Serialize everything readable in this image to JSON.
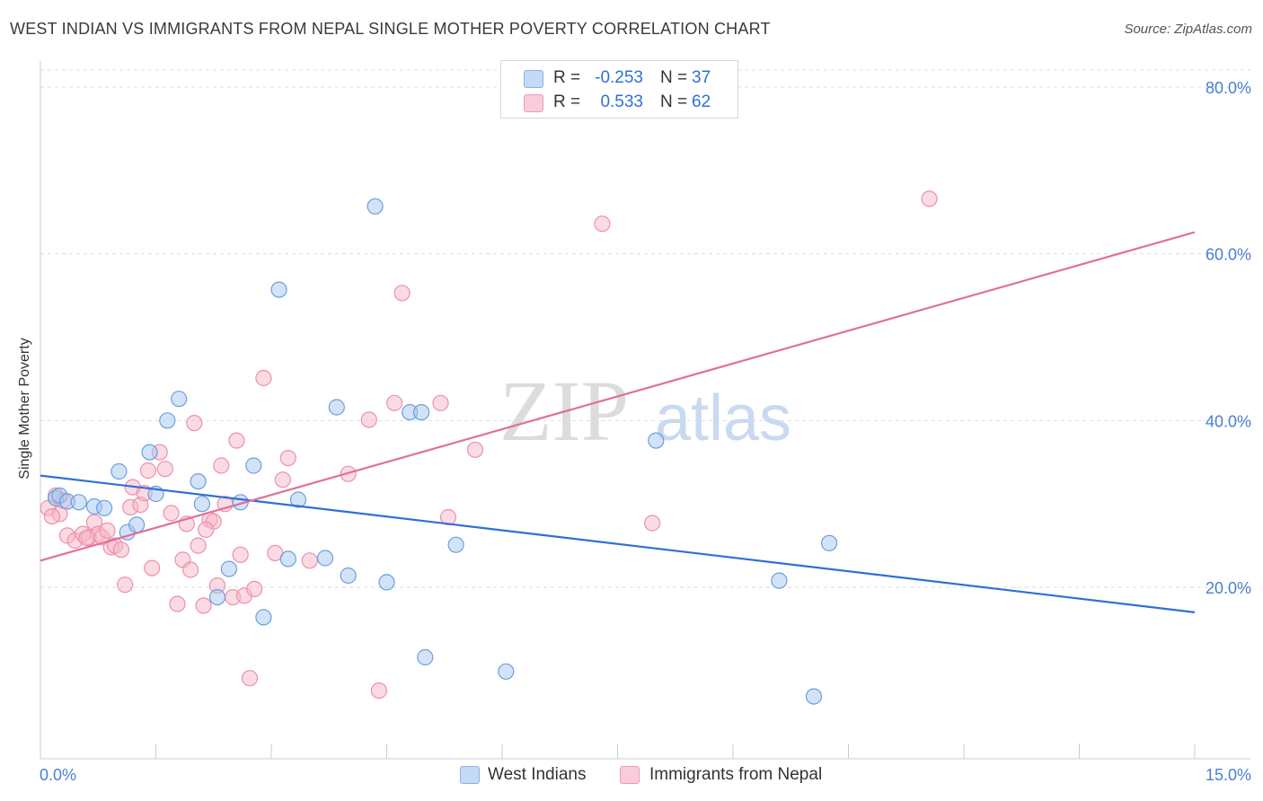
{
  "header": {
    "title": "WEST INDIAN VS IMMIGRANTS FROM NEPAL SINGLE MOTHER POVERTY CORRELATION CHART",
    "source": "Source: ZipAtlas.com"
  },
  "watermark": {
    "zip": "ZIP",
    "atlas": "atlas"
  },
  "legend": {
    "rows": [
      {
        "r_label": "R =",
        "r_value": "-0.253",
        "n_label": "N =",
        "n_value": "37",
        "color": "#a8c8f0"
      },
      {
        "r_label": "R =",
        "r_value": "0.533",
        "n_label": "N =",
        "n_value": "62",
        "color": "#f5b8c8"
      }
    ]
  },
  "bottom_legend": {
    "items": [
      {
        "label": "West Indians",
        "color": "#a8c8f0"
      },
      {
        "label": "Immigrants from Nepal",
        "color": "#f5b8c8"
      }
    ]
  },
  "chart_data": {
    "type": "scatter",
    "ylabel": "Single Mother Poverty",
    "xlim": [
      0,
      15
    ],
    "ylim": [
      0,
      85
    ],
    "x_tick_labels": [
      "0.0%",
      "15.0%"
    ],
    "y_ticks": [
      20,
      40,
      60,
      80
    ],
    "y_tick_labels": [
      "20.0%",
      "40.0%",
      "60.0%",
      "80.0%"
    ],
    "grid": "horizontal dashed",
    "series": [
      {
        "name": "West Indians",
        "color": "#6a9fe0",
        "fill": "#a8c8f0",
        "line_color": "#2f6fd8",
        "trend": {
          "x0": 0,
          "y0": 33.4,
          "x1": 15,
          "y1": 17.0
        },
        "points": [
          [
            0.2,
            30.7
          ],
          [
            0.25,
            31.0
          ],
          [
            0.7,
            29.7
          ],
          [
            0.83,
            29.5
          ],
          [
            1.02,
            33.9
          ],
          [
            1.13,
            26.6
          ],
          [
            1.25,
            27.5
          ],
          [
            1.5,
            31.2
          ],
          [
            1.65,
            40.0
          ],
          [
            1.8,
            42.6
          ],
          [
            2.05,
            32.7
          ],
          [
            2.1,
            30.0
          ],
          [
            2.3,
            18.8
          ],
          [
            2.45,
            22.2
          ],
          [
            2.6,
            30.2
          ],
          [
            2.77,
            34.6
          ],
          [
            2.9,
            16.4
          ],
          [
            3.1,
            55.7
          ],
          [
            3.22,
            23.4
          ],
          [
            3.35,
            30.5
          ],
          [
            3.7,
            23.5
          ],
          [
            3.85,
            41.6
          ],
          [
            4.0,
            21.4
          ],
          [
            4.35,
            65.7
          ],
          [
            4.5,
            20.6
          ],
          [
            4.8,
            41.0
          ],
          [
            4.95,
            41.0
          ],
          [
            5.0,
            11.6
          ],
          [
            5.4,
            25.1
          ],
          [
            6.05,
            9.9
          ],
          [
            8.0,
            37.6
          ],
          [
            9.6,
            20.8
          ],
          [
            10.05,
            6.9
          ],
          [
            10.25,
            25.3
          ],
          [
            0.35,
            30.3
          ],
          [
            1.42,
            36.2
          ],
          [
            0.5,
            30.2
          ]
        ]
      },
      {
        "name": "Immigrants from Nepal",
        "color": "#ee90aa",
        "fill": "#f5b8c8",
        "line_color": "#e0709a",
        "trend": {
          "x0": 0,
          "y0": 23.2,
          "x1": 15,
          "y1": 62.6
        },
        "points": [
          [
            0.1,
            29.5
          ],
          [
            0.2,
            31.0
          ],
          [
            0.25,
            28.8
          ],
          [
            0.35,
            26.2
          ],
          [
            0.45,
            25.6
          ],
          [
            0.55,
            26.4
          ],
          [
            0.63,
            26.0
          ],
          [
            0.7,
            27.8
          ],
          [
            0.75,
            26.4
          ],
          [
            0.8,
            26.0
          ],
          [
            0.87,
            26.8
          ],
          [
            0.92,
            24.8
          ],
          [
            0.97,
            25.0
          ],
          [
            1.05,
            24.5
          ],
          [
            1.1,
            20.3
          ],
          [
            1.17,
            29.6
          ],
          [
            1.2,
            32.0
          ],
          [
            1.3,
            29.9
          ],
          [
            1.4,
            34.0
          ],
          [
            1.45,
            22.3
          ],
          [
            1.55,
            36.2
          ],
          [
            1.62,
            34.2
          ],
          [
            1.7,
            28.9
          ],
          [
            1.78,
            18.0
          ],
          [
            1.85,
            23.3
          ],
          [
            1.9,
            27.6
          ],
          [
            1.95,
            22.1
          ],
          [
            2.0,
            39.7
          ],
          [
            2.05,
            25.0
          ],
          [
            2.12,
            17.8
          ],
          [
            2.2,
            28.1
          ],
          [
            2.25,
            27.9
          ],
          [
            2.3,
            20.2
          ],
          [
            2.35,
            34.6
          ],
          [
            2.4,
            30.0
          ],
          [
            2.5,
            18.8
          ],
          [
            2.55,
            37.6
          ],
          [
            2.6,
            23.9
          ],
          [
            2.65,
            19.0
          ],
          [
            2.72,
            9.1
          ],
          [
            2.78,
            19.8
          ],
          [
            2.9,
            45.1
          ],
          [
            3.05,
            24.1
          ],
          [
            3.15,
            32.9
          ],
          [
            3.22,
            35.5
          ],
          [
            4.0,
            33.6
          ],
          [
            4.27,
            40.1
          ],
          [
            4.4,
            7.6
          ],
          [
            4.6,
            42.1
          ],
          [
            4.7,
            55.3
          ],
          [
            5.2,
            42.1
          ],
          [
            5.3,
            28.4
          ],
          [
            5.65,
            36.5
          ],
          [
            7.3,
            63.6
          ],
          [
            7.95,
            27.7
          ],
          [
            11.55,
            66.6
          ],
          [
            0.15,
            28.5
          ],
          [
            1.35,
            31.3
          ],
          [
            2.15,
            26.9
          ],
          [
            3.5,
            23.2
          ],
          [
            0.6,
            25.9
          ],
          [
            0.3,
            30.4
          ]
        ]
      }
    ]
  }
}
